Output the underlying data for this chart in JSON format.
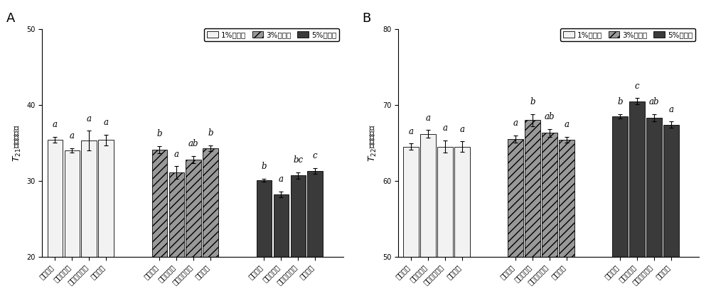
{
  "panel_A": {
    "title": "A",
    "ylabel": "T_{21}相对峰面积",
    "ylim": [
      20,
      50
    ],
    "yticks": [
      20,
      30,
      40,
      50
    ],
    "groups": [
      "1%低聚糖",
      "3%低聚糖",
      "5%低聚糖"
    ],
    "categories": [
      "低聚木糖",
      "低聚半乳糖",
      "低聚异麦芽糖",
      "低聚果糖"
    ],
    "values": [
      [
        35.4,
        34.0,
        35.3,
        35.4
      ],
      [
        34.1,
        31.1,
        32.8,
        34.3
      ],
      [
        30.1,
        28.2,
        30.7,
        31.3
      ]
    ],
    "errors": [
      [
        0.4,
        0.3,
        1.3,
        0.7
      ],
      [
        0.5,
        0.8,
        0.5,
        0.4
      ],
      [
        0.2,
        0.4,
        0.4,
        0.4
      ]
    ],
    "sig_labels": [
      [
        "a",
        "a",
        "a",
        "a"
      ],
      [
        "b",
        "a",
        "ab",
        "b"
      ],
      [
        "b",
        "a",
        "bc",
        "c"
      ]
    ],
    "colors": [
      "#f2f2f2",
      "#999999",
      "#3a3a3a"
    ],
    "hatches": [
      "",
      "///",
      ""
    ]
  },
  "panel_B": {
    "title": "B",
    "ylabel": "T_{22}相对峰面积",
    "ylim": [
      50,
      80
    ],
    "yticks": [
      50,
      60,
      70,
      80
    ],
    "groups": [
      "1%低聚糖",
      "3%低聚糖",
      "5%低聚糖"
    ],
    "categories": [
      "低聚木糖",
      "低聚半乳糖",
      "低聚异麦芽糖",
      "低聚果糖"
    ],
    "values": [
      [
        64.5,
        66.2,
        64.5,
        64.5
      ],
      [
        65.5,
        68.0,
        66.3,
        65.4
      ],
      [
        68.5,
        70.5,
        68.3,
        67.4
      ]
    ],
    "errors": [
      [
        0.4,
        0.5,
        0.8,
        0.7
      ],
      [
        0.5,
        0.8,
        0.5,
        0.4
      ],
      [
        0.3,
        0.4,
        0.5,
        0.4
      ]
    ],
    "sig_labels": [
      [
        "a",
        "a",
        "a",
        "a"
      ],
      [
        "a",
        "b",
        "ab",
        "a"
      ],
      [
        "b",
        "c",
        "ab",
        "a"
      ]
    ],
    "colors": [
      "#f2f2f2",
      "#999999",
      "#3a3a3a"
    ],
    "hatches": [
      "",
      "///",
      ""
    ]
  },
  "tick_fontsize": 7,
  "label_fontsize": 9,
  "legend_fontsize": 7.5,
  "sig_fontsize": 8.5
}
